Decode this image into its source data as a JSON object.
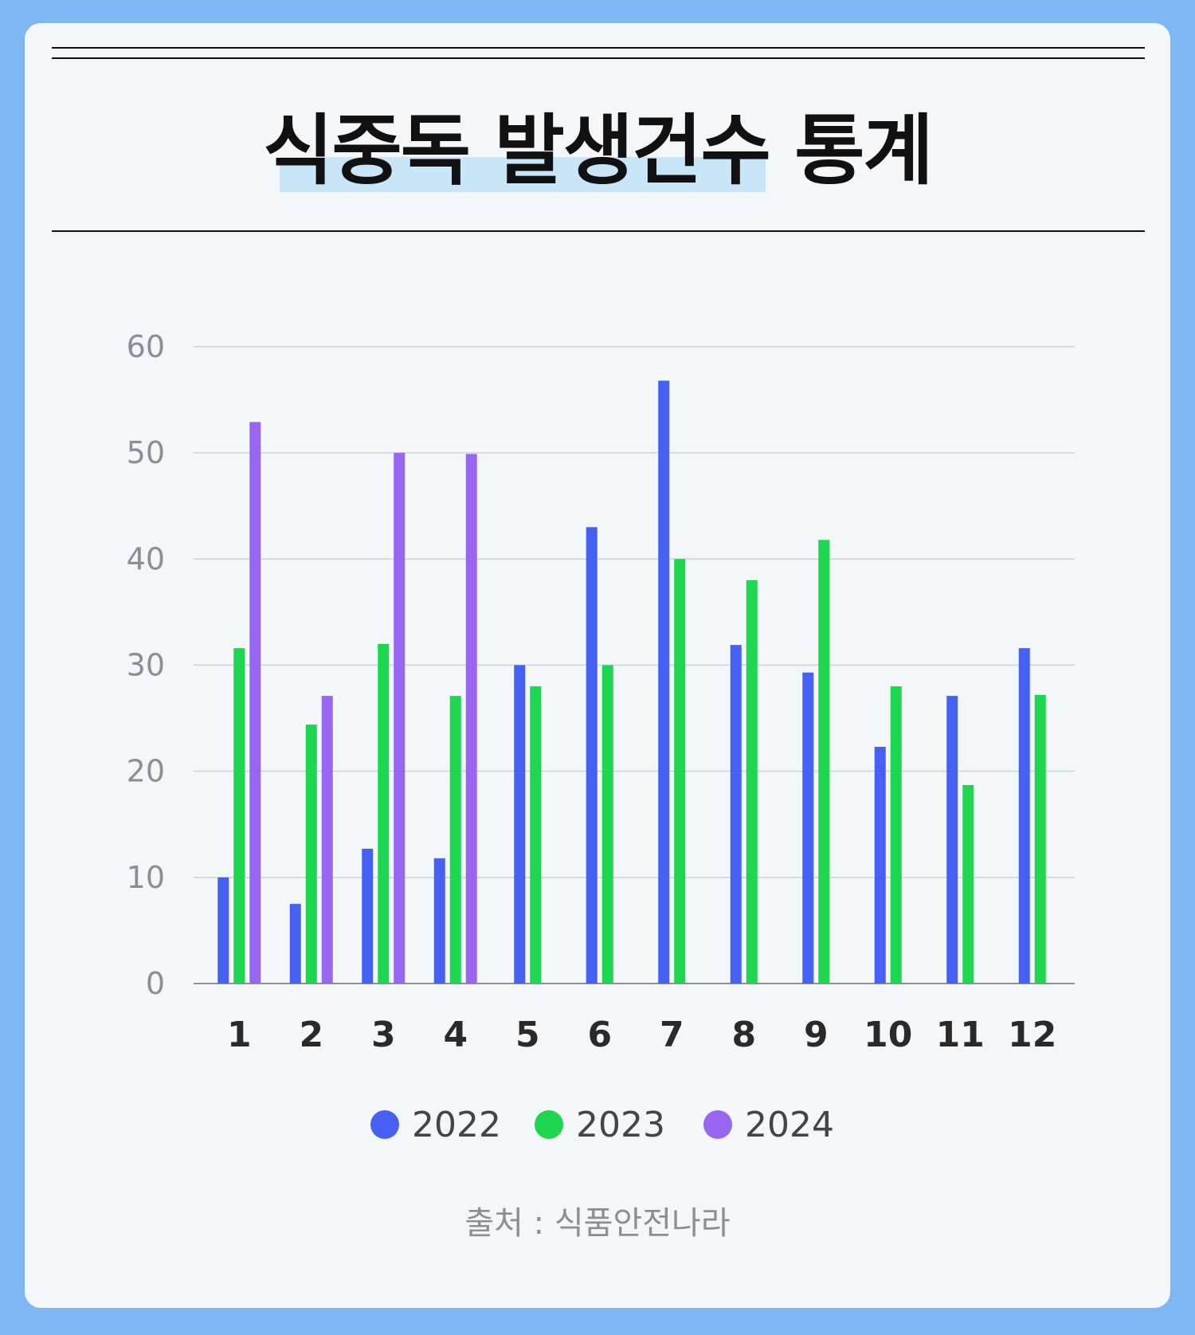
{
  "title": "식중독 발생건수 통계",
  "source": "출처 : 식품안전나라",
  "colors": {
    "2022": "#4560f3",
    "2023": "#1ed650",
    "2024": "#9966f2"
  },
  "chart_data": {
    "type": "bar",
    "title": "식중독 발생건수 통계",
    "xlabel": "",
    "ylabel": "",
    "categories": [
      "1",
      "2",
      "3",
      "4",
      "5",
      "6",
      "7",
      "8",
      "9",
      "10",
      "11",
      "12"
    ],
    "yticks": [
      "0",
      "10",
      "20",
      "30",
      "40",
      "50",
      "60"
    ],
    "ylim": [
      0,
      60
    ],
    "grid": true,
    "legend_position": "bottom",
    "series": [
      {
        "name": "2022",
        "values": [
          10,
          7.5,
          12.7,
          11.8,
          30,
          43,
          56.8,
          31.9,
          29.3,
          22.3,
          27.1,
          31.6
        ]
      },
      {
        "name": "2023",
        "values": [
          31.6,
          24.4,
          32,
          27.1,
          28,
          30,
          40,
          38,
          41.8,
          28,
          18.7,
          27.2
        ]
      },
      {
        "name": "2024",
        "values": [
          52.9,
          27.1,
          50,
          49.9,
          null,
          null,
          null,
          null,
          null,
          null,
          null,
          null
        ]
      }
    ]
  }
}
